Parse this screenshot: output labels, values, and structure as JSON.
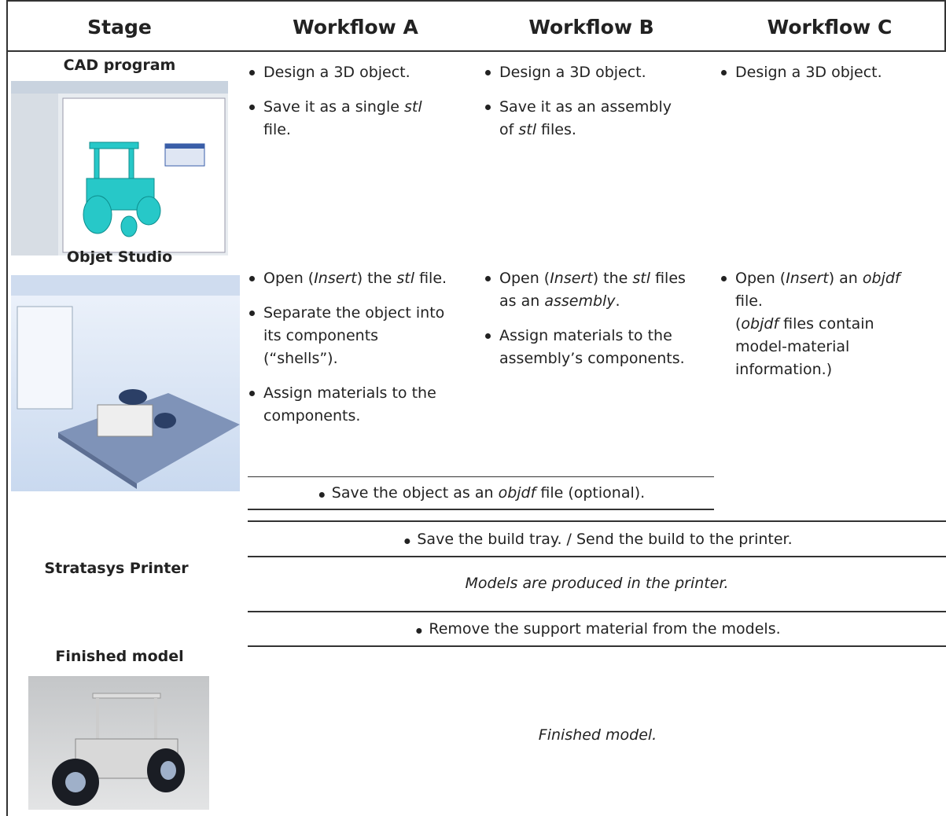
{
  "header": {
    "columns": [
      "Stage",
      "Workflow A",
      "Workflow B",
      "Workflow C"
    ]
  },
  "rows": [
    {
      "label": "CAD program",
      "workflows": [
        {
          "bullets": [
            [
              "Design a 3D object."
            ],
            [
              "Save it as a single ",
              {
                "italic": "stl"
              },
              " file."
            ]
          ]
        },
        {
          "bullets": [
            [
              "Design a 3D object."
            ],
            [
              "Save it as an assembly of ",
              {
                "italic": "stl"
              },
              " files."
            ]
          ]
        },
        {
          "bullets": [
            [
              "Design a 3D object."
            ]
          ]
        }
      ]
    },
    {
      "label": "Objet Studio",
      "workflows": [
        {
          "bullets": [
            [
              "Open (",
              {
                "italic": "Insert"
              },
              ") the ",
              {
                "italic": "stl"
              },
              " file."
            ],
            [
              "Separate the object into its components (“shells”)."
            ],
            [
              "Assign materials to the components."
            ]
          ]
        },
        {
          "bullets": [
            [
              "Open (",
              {
                "italic": "Insert"
              },
              ") the ",
              {
                "italic": "stl"
              },
              " files as an ",
              {
                "italic": "assembly"
              },
              "."
            ],
            [
              "Assign materials to the assembly’s components."
            ]
          ]
        },
        {
          "bullets": [
            [
              "Open (",
              {
                "italic": "Insert"
              },
              ") an ",
              {
                "italic": "objdf"
              },
              " file."
            ]
          ],
          "note": [
            "(",
            {
              "italic": "objdf"
            },
            " files contain model-material information.)"
          ]
        }
      ],
      "shared": [
        "Save the object as an ",
        {
          "italic": "objdf"
        },
        " file (optional)."
      ]
    }
  ],
  "printer": {
    "label": "Stratasys Printer",
    "steps": [
      "Save the build tray. / Send the build to the printer.",
      {
        "italic": "Models are produced in the printer."
      },
      "Remove the support material from the models."
    ]
  },
  "finished": {
    "label": "Finished model",
    "note": {
      "italic": "Finished model."
    }
  }
}
